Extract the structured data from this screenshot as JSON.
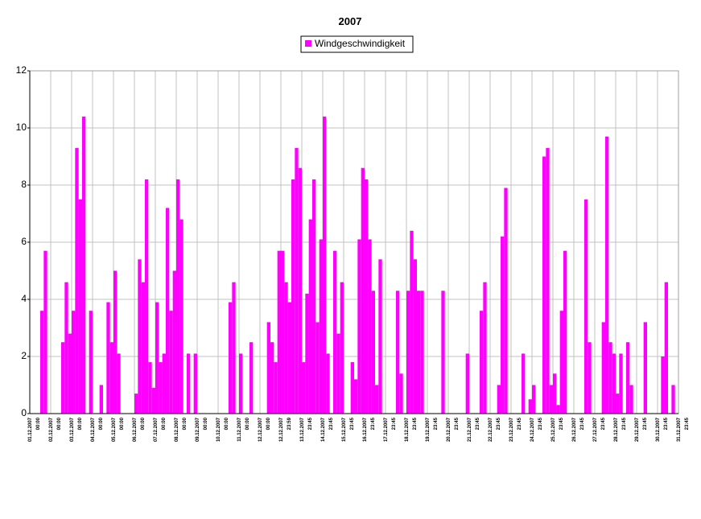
{
  "chart_data": {
    "type": "bar",
    "title": "2007",
    "color": "#ff00ff",
    "grid": true,
    "legend": "top",
    "series": [
      {
        "name": "Windgeschwindigkeit",
        "color": "#ff00ff",
        "values": [
          0,
          0,
          0,
          3.6,
          5.7,
          0,
          0,
          0,
          0,
          2.5,
          4.6,
          2.8,
          3.6,
          9.3,
          7.5,
          10.4,
          0,
          3.6,
          0,
          0,
          1,
          0,
          3.9,
          2.5,
          5,
          2.1,
          0,
          0,
          0,
          0,
          0.7,
          5.4,
          4.6,
          8.2,
          1.8,
          0.9,
          3.9,
          1.8,
          2.1,
          7.2,
          3.6,
          5,
          8.2,
          6.8,
          0,
          2.1,
          0,
          2.1,
          0,
          0,
          0,
          0,
          0,
          0,
          0,
          0,
          0,
          3.9,
          4.6,
          0,
          2.1,
          0,
          0,
          2.5,
          0,
          0,
          0,
          0,
          3.2,
          2.5,
          1.8,
          5.7,
          5.7,
          4.6,
          3.9,
          8.2,
          9.3,
          8.6,
          1.8,
          4.2,
          6.8,
          8.2,
          3.2,
          6.1,
          10.4,
          2.1,
          0,
          5.7,
          2.8,
          4.6,
          0,
          0,
          1.8,
          1.2,
          6.1,
          8.6,
          8.2,
          6.1,
          4.3,
          1,
          5.4,
          0,
          0,
          0,
          0,
          4.3,
          1.4,
          0,
          4.3,
          6.4,
          5.4,
          4.3,
          4.3,
          0,
          0,
          0,
          0,
          0,
          4.3,
          0,
          0,
          0,
          0,
          0,
          0,
          2.1,
          0,
          0,
          0,
          3.6,
          4.6,
          0,
          0,
          0,
          1,
          6.2,
          7.9,
          0,
          0,
          0,
          0,
          2.1,
          0,
          0.5,
          1,
          0,
          0,
          9,
          9.3,
          1,
          1.4,
          0.3,
          3.6,
          5.7,
          0,
          0,
          0,
          0,
          0,
          7.5,
          2.5,
          0,
          0,
          0,
          3.2,
          9.7,
          2.5,
          2.1,
          0.7,
          2.1,
          0,
          2.5,
          1,
          0,
          0,
          0,
          3.2,
          0,
          0,
          0,
          0,
          2,
          4.6,
          0,
          1,
          0
        ]
      }
    ],
    "ylim": [
      0,
      12
    ],
    "yticks": [
      0,
      2,
      4,
      6,
      8,
      10,
      12
    ],
    "x_labels": [
      [
        "01.12.2007",
        "00:00"
      ],
      [
        "02.12.2007",
        "00:00"
      ],
      [
        "03.12.2007",
        "00:00"
      ],
      [
        "04.12.2007",
        "00:00"
      ],
      [
        "05.12.2007",
        "00:00"
      ],
      [
        "06.12.2007",
        "00:00"
      ],
      [
        "07.12.2007",
        "00:00"
      ],
      [
        "08.12.2007",
        "00:00"
      ],
      [
        "09.12.2007",
        "00:00"
      ],
      [
        "10.12.2007",
        "00:00"
      ],
      [
        "11.12.2007",
        "00:00"
      ],
      [
        "12.12.2007",
        "00:00"
      ],
      [
        "12.12.2007",
        "23:59"
      ],
      [
        "13.12.2007",
        "23:45"
      ],
      [
        "14.12.2007",
        "23:45"
      ],
      [
        "15.12.2007",
        "23:45"
      ],
      [
        "16.12.2007",
        "23:45"
      ],
      [
        "17.12.2007",
        "23:45"
      ],
      [
        "18.12.2007",
        "23:45"
      ],
      [
        "19.12.2007",
        "23:45"
      ],
      [
        "20.12.2007",
        "23:45"
      ],
      [
        "21.12.2007",
        "23:45"
      ],
      [
        "22.12.2007",
        "23:45"
      ],
      [
        "23.12.2007",
        "23:45"
      ],
      [
        "24.12.2007",
        "23:45"
      ],
      [
        "25.12.2007",
        "23:45"
      ],
      [
        "26.12.2007",
        "23:45"
      ],
      [
        "27.12.2007",
        "23:45"
      ],
      [
        "28.12.2007",
        "23:45"
      ],
      [
        "29.12.2007",
        "23:45"
      ],
      [
        "30.12.2007",
        "23:45"
      ],
      [
        "31.12.2007",
        "23:45"
      ]
    ]
  }
}
